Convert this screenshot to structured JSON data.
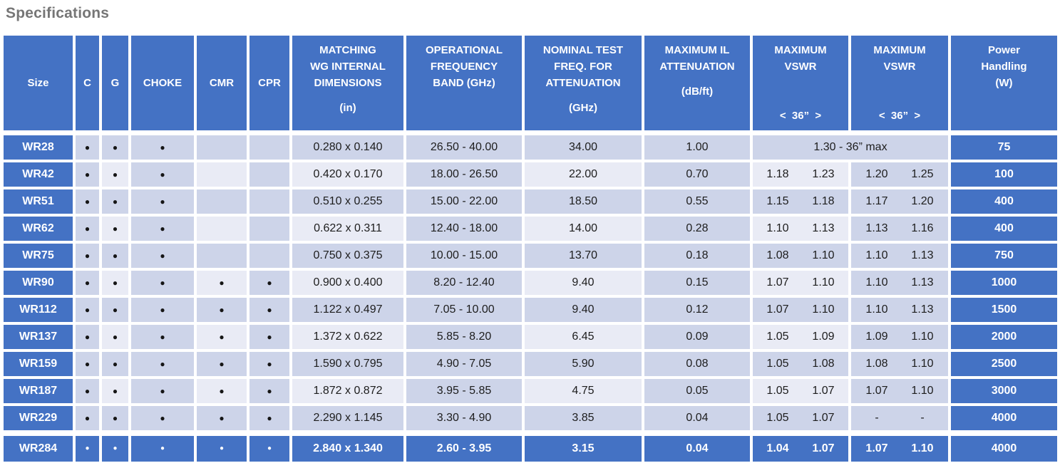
{
  "title": "Specifications",
  "colors": {
    "header_blue": "#4472C4",
    "band_dark": "#CDD4E9",
    "band_light": "#E9EBF5",
    "title_gray": "#767676",
    "text_dark": "#1d1d1d",
    "highlight_row_blue": "#4472C4",
    "gap_white": "#FFFFFF"
  },
  "dot_glyph": "●",
  "columns": [
    {
      "id": "size",
      "main": "Size"
    },
    {
      "id": "c",
      "main": "C"
    },
    {
      "id": "g",
      "main": "G"
    },
    {
      "id": "choke",
      "main": "CHOKE"
    },
    {
      "id": "cmr",
      "main": "CMR"
    },
    {
      "id": "cpr",
      "main": "CPR"
    },
    {
      "id": "dims",
      "main": "MATCHING\nWG INTERNAL\nDIMENSIONS",
      "sub": "(in)"
    },
    {
      "id": "freq",
      "main": "OPERATIONAL\nFREQUENCY\nBAND (GHz)"
    },
    {
      "id": "test",
      "main": "NOMINAL TEST\nFREQ. FOR\nATTENUATION",
      "sub": "(GHz)"
    },
    {
      "id": "il",
      "main": "MAXIMUM IL\nATTENUATION",
      "sub": "(dB/ft)"
    },
    {
      "id": "vswr1",
      "main": "MAXIMUM\nVSWR",
      "sub": "<  36”  >",
      "sub_bottom": true
    },
    {
      "id": "vswr2",
      "main": "MAXIMUM\nVSWR",
      "sub": "<  36”  >",
      "sub_bottom": true
    },
    {
      "id": "power",
      "main": "Power\nHandling\n(W)"
    }
  ],
  "rows": [
    {
      "size": "WR28",
      "c": 1,
      "g": 1,
      "choke": 1,
      "cmr": 0,
      "cpr": 0,
      "dims": "0.280 x 0.140",
      "freq": "26.50 - 40.00",
      "test": "34.00",
      "il": "1.00",
      "vswr_merged": "1.30 - 36” max",
      "power": "75"
    },
    {
      "size": "WR42",
      "c": 1,
      "g": 1,
      "choke": 1,
      "cmr": 0,
      "cpr": 0,
      "dims": "0.420 x 0.170",
      "freq": "18.00 - 26.50",
      "test": "22.00",
      "il": "0.70",
      "vswr1": [
        "1.18",
        "1.23"
      ],
      "vswr2": [
        "1.20",
        "1.25"
      ],
      "power": "100"
    },
    {
      "size": "WR51",
      "c": 1,
      "g": 1,
      "choke": 1,
      "cmr": 0,
      "cpr": 0,
      "dims": "0.510 x 0.255",
      "freq": "15.00 - 22.00",
      "test": "18.50",
      "il": "0.55",
      "vswr1": [
        "1.15",
        "1.18"
      ],
      "vswr2": [
        "1.17",
        "1.20"
      ],
      "power": "400"
    },
    {
      "size": "WR62",
      "c": 1,
      "g": 1,
      "choke": 1,
      "cmr": 0,
      "cpr": 0,
      "dims": "0.622 x 0.311",
      "freq": "12.40 - 18.00",
      "test": "14.00",
      "il": "0.28",
      "vswr1": [
        "1.10",
        "1.13"
      ],
      "vswr2": [
        "1.13",
        "1.16"
      ],
      "power": "400"
    },
    {
      "size": "WR75",
      "c": 1,
      "g": 1,
      "choke": 1,
      "cmr": 0,
      "cpr": 0,
      "dims": "0.750 x 0.375",
      "freq": "10.00 - 15.00",
      "test": "13.70",
      "il": "0.18",
      "vswr1": [
        "1.08",
        "1.10"
      ],
      "vswr2": [
        "1.10",
        "1.13"
      ],
      "power": "750"
    },
    {
      "size": "WR90",
      "c": 1,
      "g": 1,
      "choke": 1,
      "cmr": 1,
      "cpr": 1,
      "dims": "0.900 x 0.400",
      "freq": "8.20 - 12.40",
      "test": "9.40",
      "il": "0.15",
      "vswr1": [
        "1.07",
        "1.10"
      ],
      "vswr2": [
        "1.10",
        "1.13"
      ],
      "power": "1000"
    },
    {
      "size": "WR112",
      "c": 1,
      "g": 1,
      "choke": 1,
      "cmr": 1,
      "cpr": 1,
      "dims": "1.122 x 0.497",
      "freq": "7.05 - 10.00",
      "test": "9.40",
      "il": "0.12",
      "vswr1": [
        "1.07",
        "1.10"
      ],
      "vswr2": [
        "1.10",
        "1.13"
      ],
      "power": "1500"
    },
    {
      "size": "WR137",
      "c": 1,
      "g": 1,
      "choke": 1,
      "cmr": 1,
      "cpr": 1,
      "dims": "1.372 x 0.622",
      "freq": "5.85 - 8.20",
      "test": "6.45",
      "il": "0.09",
      "vswr1": [
        "1.05",
        "1.09"
      ],
      "vswr2": [
        "1.09",
        "1.10"
      ],
      "power": "2000"
    },
    {
      "size": "WR159",
      "c": 1,
      "g": 1,
      "choke": 1,
      "cmr": 1,
      "cpr": 1,
      "dims": "1.590 x 0.795",
      "freq": "4.90 - 7.05",
      "test": "5.90",
      "il": "0.08",
      "vswr1": [
        "1.05",
        "1.08"
      ],
      "vswr2": [
        "1.08",
        "1.10"
      ],
      "power": "2500"
    },
    {
      "size": "WR187",
      "c": 1,
      "g": 1,
      "choke": 1,
      "cmr": 1,
      "cpr": 1,
      "dims": "1.872 x 0.872",
      "freq": "3.95 - 5.85",
      "test": "4.75",
      "il": "0.05",
      "vswr1": [
        "1.05",
        "1.07"
      ],
      "vswr2": [
        "1.07",
        "1.10"
      ],
      "power": "3000"
    },
    {
      "size": "WR229",
      "c": 1,
      "g": 1,
      "choke": 1,
      "cmr": 1,
      "cpr": 1,
      "dims": "2.290 x 1.145",
      "freq": "3.30 - 4.90",
      "test": "3.85",
      "il": "0.04",
      "vswr1": [
        "1.05",
        "1.07"
      ],
      "vswr2": [
        "-",
        "-"
      ],
      "power": "4000"
    },
    {
      "size": "WR284",
      "highlight": true,
      "c": 1,
      "g": 1,
      "choke": 1,
      "cmr": 1,
      "cpr": 1,
      "dims": "2.840 x 1.340",
      "freq": "2.60 - 3.95",
      "test": "3.15",
      "il": "0.04",
      "vswr1": [
        "1.04",
        "1.07"
      ],
      "vswr2": [
        "1.07",
        "1.10"
      ],
      "power": "4000"
    }
  ]
}
